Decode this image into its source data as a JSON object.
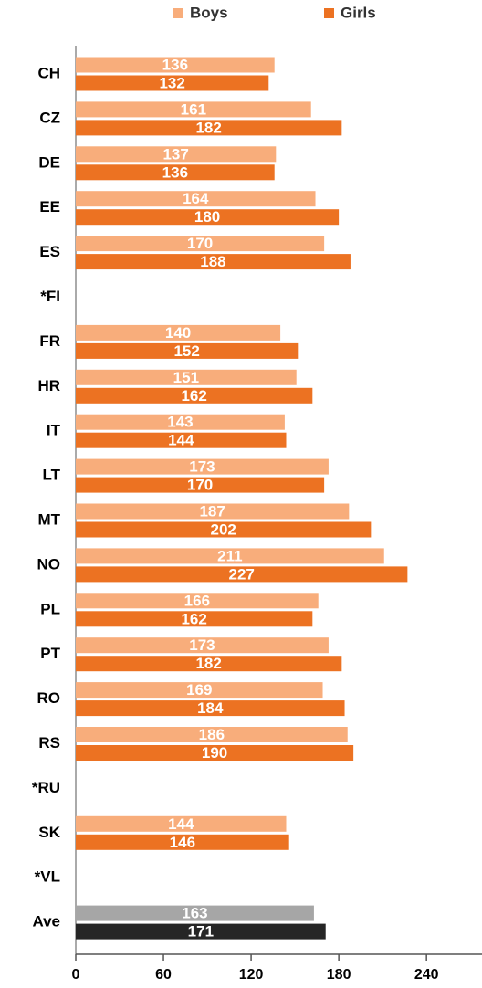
{
  "chart_data": {
    "type": "hbar",
    "categories": [
      "CH",
      "CZ",
      "DE",
      "EE",
      "ES",
      "*FI",
      "FR",
      "HR",
      "IT",
      "LT",
      "MT",
      "NO",
      "PL",
      "PT",
      "RO",
      "RS",
      "*RU",
      "SK",
      "*VL",
      "Ave"
    ],
    "series": [
      {
        "name": "Boys",
        "color": "#f8ad7b",
        "colors": [
          "#f8ad7b",
          "#f8ad7b",
          "#f8ad7b",
          "#f8ad7b",
          "#f8ad7b",
          "#f8ad7b",
          "#f8ad7b",
          "#f8ad7b",
          "#f8ad7b",
          "#f8ad7b",
          "#f8ad7b",
          "#f8ad7b",
          "#f8ad7b",
          "#f8ad7b",
          "#f8ad7b",
          "#f8ad7b",
          "#f8ad7b",
          "#f8ad7b",
          "#f8ad7b",
          "#a6a6a6"
        ],
        "values": [
          136,
          161,
          137,
          164,
          170,
          null,
          140,
          151,
          143,
          173,
          187,
          211,
          166,
          173,
          169,
          186,
          null,
          144,
          null,
          163
        ]
      },
      {
        "name": "Girls",
        "color": "#ec7222",
        "colors": [
          "#ec7222",
          "#ec7222",
          "#ec7222",
          "#ec7222",
          "#ec7222",
          "#ec7222",
          "#ec7222",
          "#ec7222",
          "#ec7222",
          "#ec7222",
          "#ec7222",
          "#ec7222",
          "#ec7222",
          "#ec7222",
          "#ec7222",
          "#ec7222",
          "#ec7222",
          "#ec7222",
          "#ec7222",
          "#262626"
        ],
        "values": [
          132,
          182,
          136,
          180,
          188,
          null,
          152,
          162,
          144,
          170,
          202,
          227,
          162,
          182,
          184,
          190,
          null,
          146,
          null,
          171
        ]
      }
    ],
    "xlim": [
      0,
      278
    ],
    "xticks": [
      0,
      60,
      120,
      180,
      240
    ],
    "legend": "top"
  }
}
